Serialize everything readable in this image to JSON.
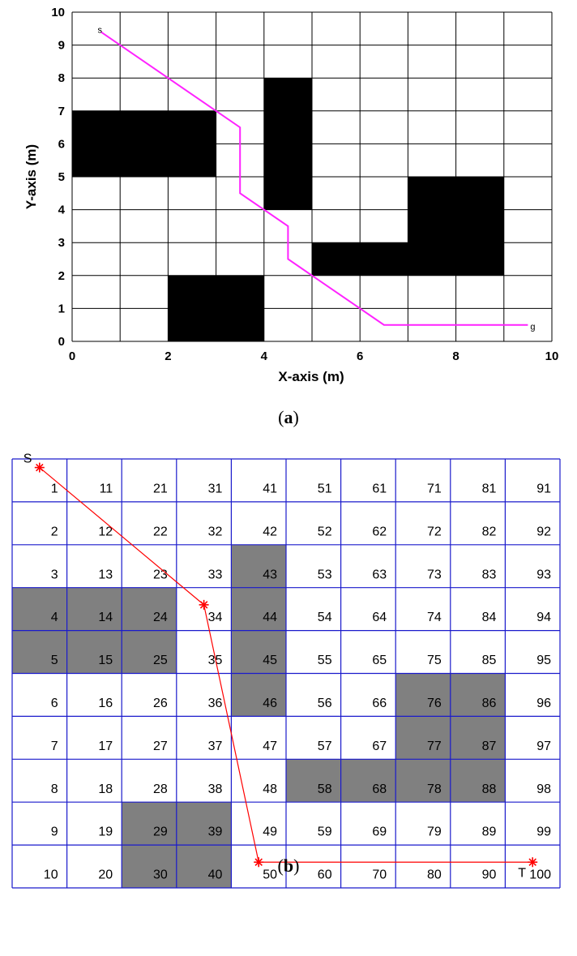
{
  "panel_a": {
    "xlabel": "X-axis (m)",
    "ylabel": "Y-axis (m)",
    "xlim": [
      0,
      10
    ],
    "ylim": [
      0,
      10
    ],
    "x_ticks": [
      "0",
      "2",
      "4",
      "6",
      "8",
      "10"
    ],
    "y_ticks": [
      "0",
      "1",
      "2",
      "3",
      "4",
      "5",
      "6",
      "7",
      "8",
      "9",
      "10"
    ],
    "grid": true,
    "obstacles": [
      {
        "x": [
          0,
          3
        ],
        "y": [
          5,
          7
        ]
      },
      {
        "x": [
          4,
          5
        ],
        "y": [
          4,
          8
        ]
      },
      {
        "x": [
          5,
          7
        ],
        "y": [
          2,
          3
        ]
      },
      {
        "x": [
          7,
          9
        ],
        "y": [
          2,
          5
        ]
      },
      {
        "x": [
          2,
          4
        ],
        "y": [
          0,
          2
        ]
      }
    ],
    "path": [
      [
        0.6,
        9.4
      ],
      [
        3.0,
        7.0
      ],
      [
        3.5,
        6.5
      ],
      [
        3.5,
        4.5
      ],
      [
        4.5,
        3.5
      ],
      [
        4.5,
        2.5
      ],
      [
        6.5,
        0.5
      ],
      [
        9.5,
        0.5
      ]
    ],
    "path_color": "#ff22ff",
    "start_label": "s",
    "goal_label": "g",
    "caption_open": "(",
    "caption_letter": "a",
    "caption_close": ")"
  },
  "panel_b": {
    "columns": 10,
    "rows": 10,
    "cell_numbers": [
      "1",
      "2",
      "3",
      "4",
      "5",
      "6",
      "7",
      "8",
      "9",
      "10",
      "11",
      "12",
      "13",
      "14",
      "15",
      "16",
      "17",
      "18",
      "19",
      "20",
      "21",
      "22",
      "23",
      "24",
      "25",
      "26",
      "27",
      "28",
      "29",
      "30",
      "31",
      "32",
      "33",
      "34",
      "35",
      "36",
      "37",
      "38",
      "39",
      "40",
      "41",
      "42",
      "43",
      "44",
      "45",
      "46",
      "47",
      "48",
      "49",
      "50",
      "51",
      "52",
      "53",
      "54",
      "55",
      "56",
      "57",
      "58",
      "59",
      "60",
      "61",
      "62",
      "63",
      "64",
      "65",
      "66",
      "67",
      "68",
      "69",
      "70",
      "71",
      "72",
      "73",
      "74",
      "75",
      "76",
      "77",
      "78",
      "79",
      "80",
      "81",
      "82",
      "83",
      "84",
      "85",
      "86",
      "87",
      "88",
      "89",
      "90",
      "91",
      "92",
      "93",
      "94",
      "95",
      "96",
      "97",
      "98",
      "99",
      "100"
    ],
    "obstacle_cells": [
      4,
      5,
      14,
      15,
      24,
      25,
      29,
      30,
      39,
      40,
      43,
      44,
      45,
      46,
      58,
      68,
      76,
      77,
      78,
      86,
      87,
      88
    ],
    "path": [
      [
        0.5,
        0.2
      ],
      [
        3.5,
        3.4
      ],
      [
        4.5,
        9.4
      ],
      [
        9.5,
        9.4
      ]
    ],
    "grid_color": "#1a1acc",
    "obstacle_color": "#808080",
    "path_color": "#ff0000",
    "start_label": "S",
    "target_label": "T",
    "caption_open": "(",
    "caption_letter": "b",
    "caption_close": ")"
  }
}
